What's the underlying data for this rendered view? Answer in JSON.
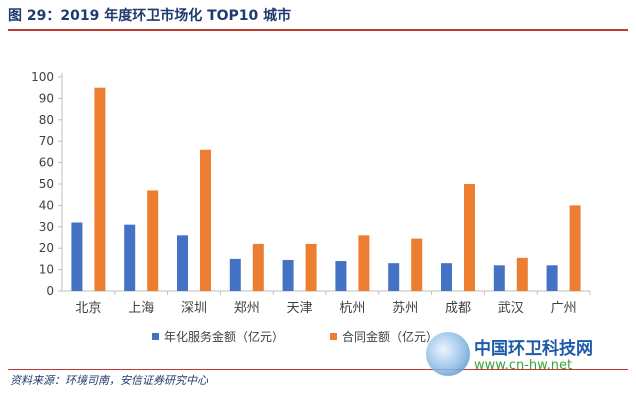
{
  "figure": {
    "title": "图 29：2019 年度环卫市场化 TOP10 城市",
    "source": "资料来源：环境司南，安信证券研究中心"
  },
  "watermark": {
    "name": "中国环卫科技网",
    "url": "www.cn-hw.net"
  },
  "colors": {
    "series1": "#4472c4",
    "series2": "#ed7d31",
    "axis": "#bfbfbf",
    "title": "#1f3a6e",
    "rule": "#c0392b"
  },
  "chart_data": {
    "type": "bar",
    "categories": [
      "北京",
      "上海",
      "深圳",
      "郑州",
      "天津",
      "杭州",
      "苏州",
      "成都",
      "武汉",
      "广州"
    ],
    "series": [
      {
        "name": "年化服务金额（亿元）",
        "values": [
          32,
          31,
          26,
          15,
          14.5,
          14,
          13,
          13,
          12,
          12
        ]
      },
      {
        "name": "合同金额（亿元）",
        "values": [
          95,
          47,
          66,
          22,
          22,
          26,
          24.5,
          50,
          15.5,
          40
        ]
      }
    ],
    "ylim": [
      0,
      100
    ],
    "yticks": [
      0,
      10,
      20,
      30,
      40,
      50,
      60,
      70,
      80,
      90,
      100
    ],
    "grid": false,
    "legend": "bottom",
    "xlabel": "",
    "ylabel": ""
  }
}
